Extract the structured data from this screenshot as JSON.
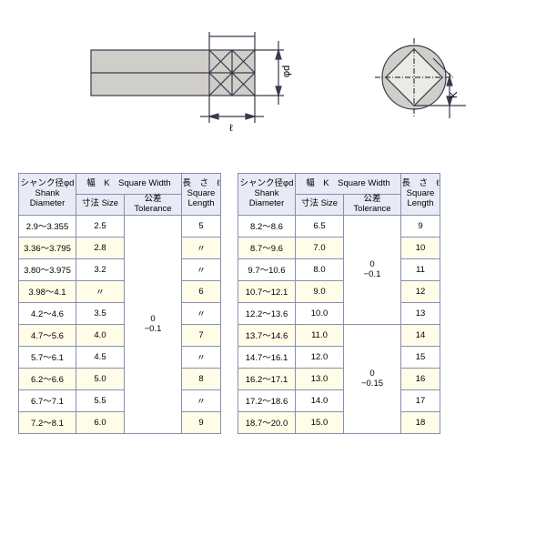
{
  "diagram": {
    "phi_d_label": "φd",
    "ell_label": "ℓ",
    "k_label": "K",
    "body_fill": "#d0cec8",
    "line_color": "#3a3a4a"
  },
  "headers": {
    "shank_jp": "シャンク径φd",
    "shank_en1": "Shank",
    "shank_en2": "Diameter",
    "width_jp": "幅　K　Square Width",
    "size_jp": "寸法 Size",
    "tol_jp": "公差 Tolerance",
    "len_jp": "長　さ　ℓ",
    "len_en1": "Square",
    "len_en2": "Length"
  },
  "tol1": "0\n−0.1",
  "tol2a": "0\n−0.1",
  "tol2b": "0\n−0.15",
  "left": [
    {
      "d": "2.9～3.355",
      "size": "2.5",
      "len": "5"
    },
    {
      "d": "3.36～3.795",
      "size": "2.8",
      "len": "〃"
    },
    {
      "d": "3.80～3.975",
      "size": "3.2",
      "len": "〃"
    },
    {
      "d": "3.98～4.1",
      "size": "〃",
      "len": "6"
    },
    {
      "d": "4.2～4.6",
      "size": "3.5",
      "len": "〃"
    },
    {
      "d": "4.7～5.6",
      "size": "4.0",
      "len": "7"
    },
    {
      "d": "5.7～6.1",
      "size": "4.5",
      "len": "〃"
    },
    {
      "d": "6.2～6.6",
      "size": "5.0",
      "len": "8"
    },
    {
      "d": "6.7～7.1",
      "size": "5.5",
      "len": "〃"
    },
    {
      "d": "7.2～8.1",
      "size": "6.0",
      "len": "9"
    }
  ],
  "right": [
    {
      "d": "8.2～8.6",
      "size": "6.5",
      "len": "9"
    },
    {
      "d": "8.7～9.6",
      "size": "7.0",
      "len": "10"
    },
    {
      "d": "9.7～10.6",
      "size": "8.0",
      "len": "11"
    },
    {
      "d": "10.7～12.1",
      "size": "9.0",
      "len": "12"
    },
    {
      "d": "12.2～13.6",
      "size": "10.0",
      "len": "13"
    },
    {
      "d": "13.7～14.6",
      "size": "11.0",
      "len": "14"
    },
    {
      "d": "14.7～16.1",
      "size": "12.0",
      "len": "15"
    },
    {
      "d": "16.2～17.1",
      "size": "13.0",
      "len": "16"
    },
    {
      "d": "17.2～18.6",
      "size": "14.0",
      "len": "17"
    },
    {
      "d": "18.7～20.0",
      "size": "15.0",
      "len": "18"
    }
  ]
}
